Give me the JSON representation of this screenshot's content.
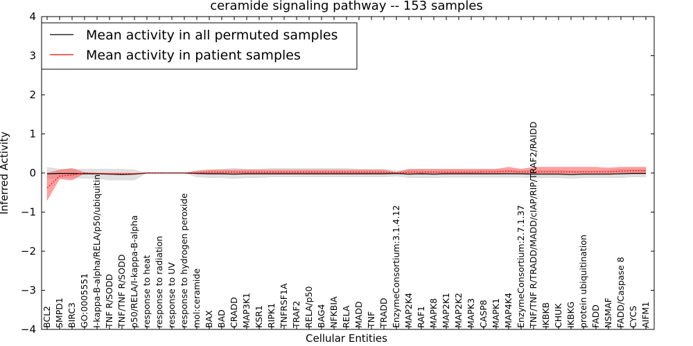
{
  "chart_data": {
    "type": "line",
    "title": "ceramide signaling pathway -- 153 samples",
    "xlabel": "Cellular Entities",
    "ylabel": "Inferred Activity",
    "ylim": [
      -4,
      4
    ],
    "yticks": [
      -4,
      -3,
      -2,
      -1,
      0,
      1,
      2,
      3,
      4
    ],
    "ytick_labels": [
      "−4",
      "−3",
      "−2",
      "−1",
      "0",
      "1",
      "2",
      "3",
      "4"
    ],
    "legend_location": "top-left",
    "categories": [
      "BCL2",
      "SMPD1",
      "BIRC3",
      "GO:0005551",
      "I-kappa-B-alpha/RELA/p50/ubiquitin",
      "TNF R/SODD",
      "TNF/TNF R/SODD",
      "p50/RELA/I-kappa-B-alpha",
      "response to heat",
      "response to radiation",
      "response to UV",
      "response to hydrogen peroxide",
      "mol:ceramide",
      "BAX",
      "BAD",
      "CRADD",
      "MAP3K1",
      "KSR1",
      "RIPK1",
      "TNFRSF1A",
      "TRAF2",
      "RELA/p50",
      "BAG4",
      "NFKBIA",
      "RELA",
      "MADD",
      "TNF",
      "TRADD",
      "EnzymeConsortium:3.1.4.12",
      "MAP2K4",
      "RAF1",
      "MAPK8",
      "MAP2K1",
      "MAP2K2",
      "MAPK3",
      "CASP8",
      "MAPK1",
      "MAP4K4",
      "EnzymeConsortium:2.7.1.37",
      "TNF/TNF R/TRADD/MADD/cIAP/RIP/TRAF2/RAIDD",
      "IKBKB",
      "CHUK",
      "IKBKG",
      "protein ubiquitination",
      "FADD",
      "NSMAF",
      "FADD/Caspase 8",
      "CYCS",
      "AIFM1"
    ],
    "series": [
      {
        "name": "Mean activity in all permuted samples",
        "color": "#000000",
        "band_color": "#bbbbbb",
        "values": [
          -0.02,
          -0.01,
          -0.01,
          -0.02,
          -0.02,
          -0.03,
          -0.04,
          -0.03,
          0.0,
          0.0,
          0.0,
          0.0,
          -0.01,
          -0.02,
          -0.02,
          -0.03,
          -0.02,
          -0.02,
          -0.02,
          -0.02,
          -0.02,
          -0.02,
          -0.02,
          -0.02,
          -0.02,
          -0.02,
          -0.02,
          -0.02,
          -0.01,
          -0.03,
          -0.02,
          -0.03,
          -0.02,
          -0.02,
          -0.02,
          -0.02,
          -0.02,
          -0.02,
          -0.02,
          -0.03,
          -0.03,
          -0.03,
          -0.04,
          -0.03,
          -0.03,
          -0.03,
          -0.02,
          -0.01,
          -0.01
        ],
        "band_lower": [
          -0.15,
          -0.12,
          -0.12,
          -0.14,
          -0.14,
          -0.18,
          -0.18,
          -0.18,
          0.0,
          0.0,
          0.0,
          0.0,
          -0.1,
          -0.12,
          -0.12,
          -0.14,
          -0.12,
          -0.12,
          -0.1,
          -0.1,
          -0.1,
          -0.1,
          -0.1,
          -0.1,
          -0.1,
          -0.1,
          -0.1,
          -0.1,
          -0.08,
          -0.12,
          -0.12,
          -0.12,
          -0.11,
          -0.11,
          -0.11,
          -0.11,
          -0.11,
          -0.11,
          -0.11,
          -0.12,
          -0.12,
          -0.12,
          -0.14,
          -0.12,
          -0.12,
          -0.12,
          -0.12,
          -0.1,
          -0.1
        ],
        "band_upper": [
          0.15,
          0.1,
          0.1,
          0.1,
          0.1,
          0.1,
          0.1,
          0.08,
          0.0,
          0.0,
          0.0,
          0.0,
          0.06,
          0.08,
          0.1,
          0.12,
          0.1,
          0.1,
          0.12,
          0.12,
          0.12,
          0.12,
          0.12,
          0.12,
          0.12,
          0.1,
          0.1,
          0.1,
          0.06,
          0.08,
          0.08,
          0.08,
          0.08,
          0.08,
          0.08,
          0.08,
          0.08,
          0.08,
          0.06,
          0.08,
          0.08,
          0.08,
          0.06,
          0.06,
          0.06,
          0.08,
          0.1,
          0.1,
          0.1
        ]
      },
      {
        "name": "Mean activity in patient samples",
        "color": "#ff0000",
        "band_color": "#ff4444",
        "values": [
          -0.38,
          -0.08,
          -0.05,
          0.0,
          -0.01,
          -0.02,
          -0.02,
          -0.02,
          0.0,
          0.0,
          0.0,
          0.0,
          0.0,
          0.02,
          0.02,
          0.02,
          0.02,
          0.02,
          0.02,
          0.02,
          0.02,
          0.02,
          0.02,
          0.02,
          0.02,
          0.02,
          0.02,
          0.02,
          0.0,
          0.02,
          0.02,
          0.02,
          0.02,
          0.02,
          0.02,
          0.03,
          0.03,
          0.05,
          0.03,
          0.03,
          0.03,
          0.03,
          0.03,
          0.03,
          0.03,
          0.03,
          0.05,
          0.06,
          0.06
        ],
        "band_lower": [
          -0.7,
          -0.15,
          -0.18,
          -0.01,
          -0.02,
          -0.03,
          -0.03,
          -0.03,
          0.0,
          0.0,
          0.0,
          0.0,
          -0.02,
          -0.03,
          -0.03,
          -0.03,
          -0.03,
          -0.03,
          -0.03,
          -0.03,
          -0.03,
          -0.03,
          -0.03,
          -0.03,
          -0.03,
          -0.03,
          -0.03,
          -0.03,
          -0.01,
          -0.03,
          -0.03,
          -0.03,
          -0.03,
          -0.03,
          -0.03,
          -0.03,
          -0.03,
          -0.02,
          -0.02,
          -0.02,
          -0.02,
          -0.02,
          -0.02,
          -0.02,
          -0.02,
          -0.02,
          0.0,
          0.0,
          0.0
        ],
        "band_upper": [
          0.0,
          0.08,
          0.12,
          0.01,
          0.0,
          0.0,
          0.0,
          0.0,
          0.0,
          0.0,
          0.0,
          0.0,
          0.05,
          0.08,
          0.08,
          0.08,
          0.08,
          0.08,
          0.08,
          0.08,
          0.08,
          0.08,
          0.08,
          0.08,
          0.08,
          0.08,
          0.08,
          0.08,
          0.02,
          0.1,
          0.1,
          0.1,
          0.1,
          0.1,
          0.1,
          0.1,
          0.1,
          0.15,
          0.1,
          0.15,
          0.15,
          0.15,
          0.15,
          0.15,
          0.15,
          0.13,
          0.15,
          0.15,
          0.15
        ]
      }
    ]
  }
}
